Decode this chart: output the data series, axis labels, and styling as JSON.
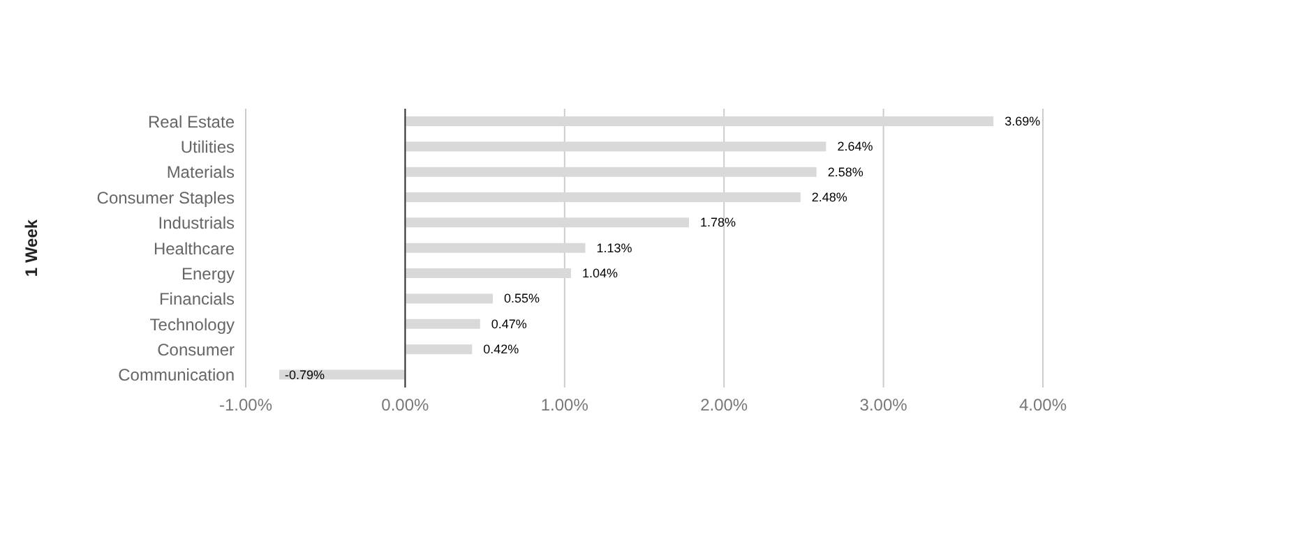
{
  "chart_data": {
    "type": "bar",
    "orientation": "horizontal",
    "ylabel": "1 Week",
    "categories": [
      "Real Estate",
      "Utilities",
      "Materials",
      "Consumer Staples",
      "Industrials",
      "Healthcare",
      "Energy",
      "Financials",
      "Technology",
      "Consumer",
      "Communication"
    ],
    "values": [
      3.69,
      2.64,
      2.58,
      2.48,
      1.78,
      1.13,
      1.04,
      0.55,
      0.47,
      0.42,
      -0.79
    ],
    "value_labels": [
      "3.69%",
      "2.64%",
      "2.58%",
      "2.48%",
      "1.78%",
      "1.13%",
      "1.04%",
      "0.55%",
      "0.47%",
      "0.42%",
      "-0.79%"
    ],
    "color": "#d9d9d9",
    "xlim": [
      -1,
      4
    ],
    "xticks": [
      {
        "value": -1,
        "label": "-1.00%"
      },
      {
        "value": 0,
        "label": "0.00%"
      },
      {
        "value": 1,
        "label": "1.00%"
      },
      {
        "value": 2,
        "label": "2.00%"
      },
      {
        "value": 3,
        "label": "3.00%"
      },
      {
        "value": 4,
        "label": "4.00%"
      }
    ],
    "ref_lines": [
      {
        "axis": "x",
        "value": 0,
        "color": "#333333"
      }
    ],
    "grid": "x",
    "legend": false
  }
}
